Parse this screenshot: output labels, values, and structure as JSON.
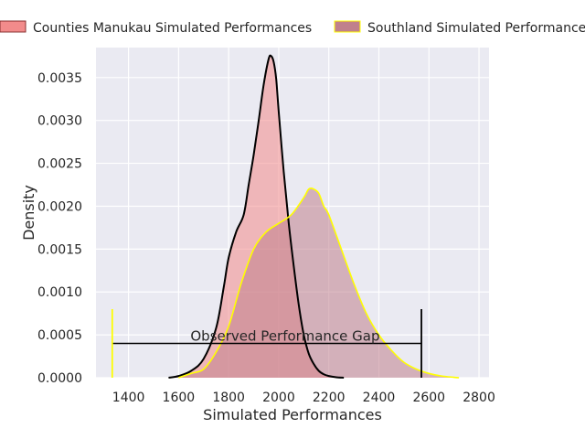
{
  "chart_data": {
    "type": "area",
    "title": "",
    "xlabel": "Simulated Performances",
    "ylabel": "Density",
    "xlim": [
      1270,
      2840
    ],
    "ylim": [
      0,
      0.00385
    ],
    "x_ticks": [
      1400,
      1600,
      1800,
      2000,
      2200,
      2400,
      2600,
      2800
    ],
    "x_tick_labels": [
      "1400",
      "1600",
      "1800",
      "2000",
      "2200",
      "2400",
      "2600",
      "2800"
    ],
    "y_ticks": [
      0,
      0.0005,
      0.001,
      0.0015,
      0.002,
      0.0025,
      0.003,
      0.0035
    ],
    "y_tick_labels": [
      "0.0000",
      "0.0005",
      "0.0010",
      "0.0015",
      "0.0020",
      "0.0025",
      "0.0030",
      "0.0035"
    ],
    "grid": true,
    "legend_position": "top, above plot, two columns",
    "series": [
      {
        "name": "Counties Manukau Simulated Performances",
        "fill_color": "#f28b8b",
        "line_color": "#000000",
        "x": [
          1560,
          1600,
          1650,
          1700,
          1750,
          1780,
          1800,
          1830,
          1860,
          1880,
          1900,
          1920,
          1940,
          1960,
          1970,
          1980,
          1990,
          2000,
          2020,
          2040,
          2060,
          2080,
          2100,
          2120,
          2140,
          2160,
          2180,
          2200,
          2230,
          2260
        ],
        "y": [
          0.0,
          2e-05,
          8e-05,
          0.00022,
          0.00058,
          0.00105,
          0.0014,
          0.0017,
          0.0019,
          0.00225,
          0.0026,
          0.003,
          0.00342,
          0.00372,
          0.00375,
          0.00368,
          0.00348,
          0.0031,
          0.0024,
          0.0018,
          0.0013,
          0.00085,
          0.0005,
          0.00028,
          0.00016,
          8e-05,
          4e-05,
          2e-05,
          5e-06,
          0.0
        ]
      },
      {
        "name": "Southland Simulated Performances",
        "fill_color": "#c0808c",
        "line_color": "#ffff00",
        "x": [
          1600,
          1650,
          1700,
          1750,
          1800,
          1850,
          1900,
          1950,
          2000,
          2050,
          2100,
          2120,
          2140,
          2160,
          2180,
          2200,
          2250,
          2300,
          2350,
          2400,
          2450,
          2500,
          2550,
          2600,
          2650,
          2700,
          2720
        ],
        "y": [
          0.0,
          5e-05,
          0.0001,
          0.0003,
          0.0006,
          0.0011,
          0.0015,
          0.0017,
          0.0018,
          0.0019,
          0.0021,
          0.0022,
          0.0022,
          0.00215,
          0.002,
          0.0019,
          0.0015,
          0.0011,
          0.00075,
          0.0005,
          0.00032,
          0.00018,
          0.0001,
          5e-05,
          2e-05,
          5e-06,
          0.0
        ]
      }
    ],
    "annotation": {
      "text": "Observed Performance Gap",
      "x_start": 1335,
      "x_end": 2570,
      "y": 0.0004,
      "left_marker_color": "#ffff00",
      "right_marker_color": "#000000",
      "marker_top": 0.0008
    }
  }
}
